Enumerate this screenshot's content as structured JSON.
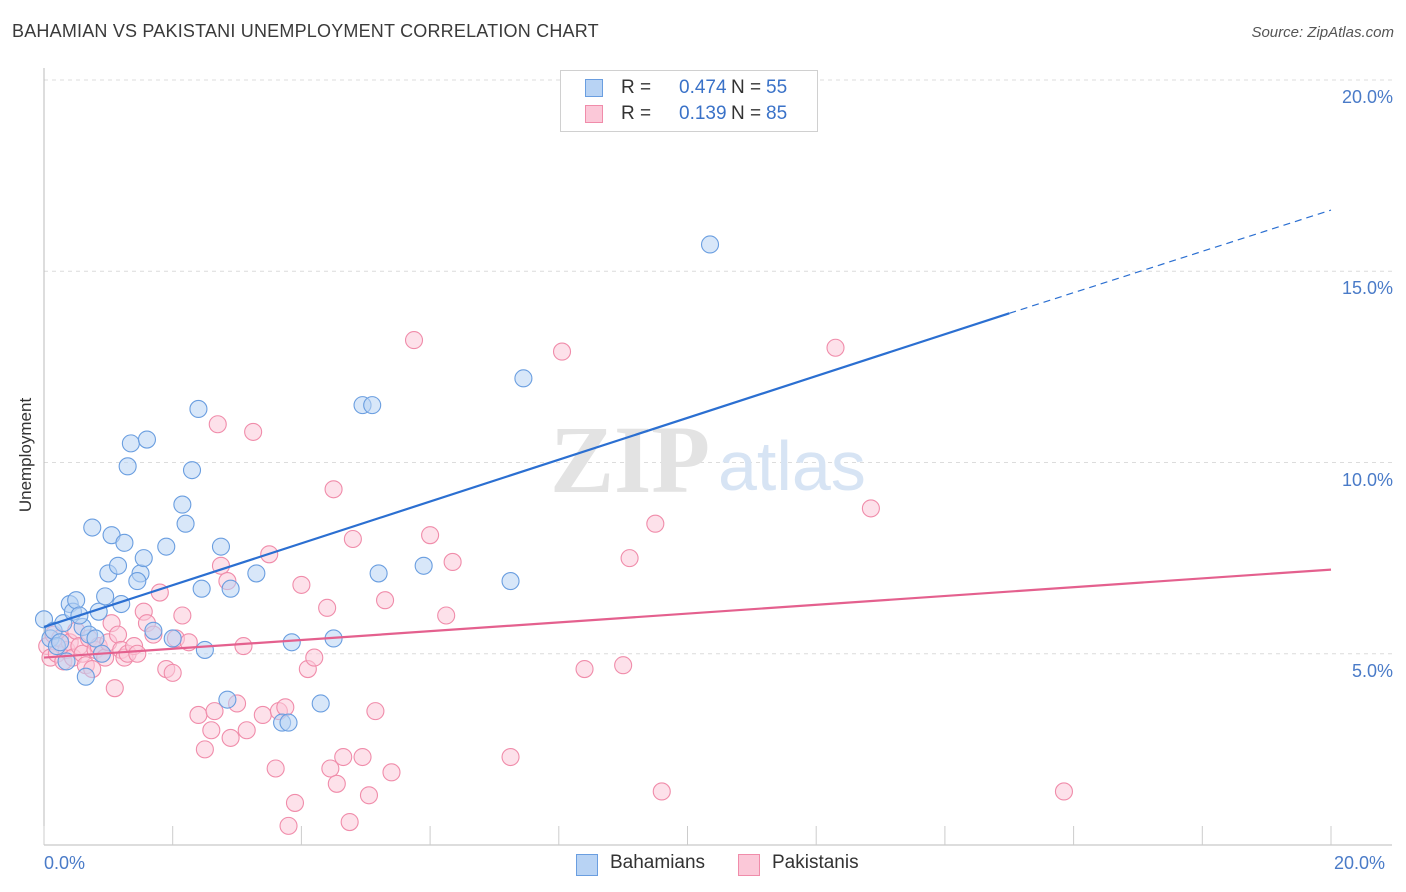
{
  "title": "BAHAMIAN VS PAKISTANI UNEMPLOYMENT CORRELATION CHART",
  "source": "Source: ZipAtlas.com",
  "watermark": {
    "zip": "ZIP",
    "atlas": "atlas"
  },
  "legend": {
    "rows": [
      {
        "r_label": "R =",
        "r_value": "0.474",
        "n_label": "N =",
        "n_value": "55",
        "fill": "#b8d3f4",
        "stroke": "#6a9ee0"
      },
      {
        "r_label": "R =",
        "r_value": "0.139",
        "n_label": "N =",
        "n_value": "85",
        "fill": "#fbc8d8",
        "stroke": "#f08caa"
      }
    ]
  },
  "chart_data": {
    "type": "scatter",
    "title": "BAHAMIAN VS PAKISTANI UNEMPLOYMENT CORRELATION CHART",
    "xlabel": "",
    "ylabel": "Unemployment",
    "xlim": [
      0,
      20
    ],
    "ylim": [
      0,
      20
    ],
    "x_tick_labels": [
      "0.0%",
      "20.0%"
    ],
    "y_tick_labels": [
      "20.0%",
      "15.0%",
      "10.0%",
      "5.0%"
    ],
    "y_tick_values": [
      20,
      15,
      10,
      5
    ],
    "grid": "horizontal dashed",
    "legend_position": "top-center",
    "series": [
      {
        "name": "Bahamians",
        "color": "#6a9ee0",
        "fill": "#b8d3f4",
        "trend": {
          "x0": 0,
          "y0": 5.7,
          "x1": 15,
          "y1": 13.9,
          "dashed_to_x": 20,
          "dashed_to_y": 16.6,
          "color": "#2b6fd1"
        },
        "points": [
          [
            0.0,
            5.9
          ],
          [
            0.1,
            5.4
          ],
          [
            0.15,
            5.6
          ],
          [
            0.2,
            5.2
          ],
          [
            0.25,
            5.3
          ],
          [
            0.3,
            5.8
          ],
          [
            0.35,
            4.8
          ],
          [
            0.4,
            6.3
          ],
          [
            0.45,
            6.1
          ],
          [
            0.5,
            6.4
          ],
          [
            0.6,
            5.7
          ],
          [
            0.65,
            4.4
          ],
          [
            0.7,
            5.5
          ],
          [
            0.75,
            8.3
          ],
          [
            0.8,
            5.4
          ],
          [
            0.85,
            6.1
          ],
          [
            0.9,
            5.0
          ],
          [
            0.95,
            6.5
          ],
          [
            1.0,
            7.1
          ],
          [
            1.05,
            8.1
          ],
          [
            1.15,
            7.3
          ],
          [
            1.2,
            6.3
          ],
          [
            1.25,
            7.9
          ],
          [
            1.3,
            9.9
          ],
          [
            1.35,
            10.5
          ],
          [
            1.5,
            7.1
          ],
          [
            1.55,
            7.5
          ],
          [
            1.6,
            10.6
          ],
          [
            1.7,
            5.6
          ],
          [
            1.9,
            7.8
          ],
          [
            2.0,
            5.4
          ],
          [
            2.15,
            8.9
          ],
          [
            2.2,
            8.4
          ],
          [
            2.3,
            9.8
          ],
          [
            2.4,
            11.4
          ],
          [
            2.45,
            6.7
          ],
          [
            2.5,
            5.1
          ],
          [
            2.75,
            7.8
          ],
          [
            2.9,
            6.7
          ],
          [
            2.85,
            3.8
          ],
          [
            3.3,
            7.1
          ],
          [
            3.7,
            3.2
          ],
          [
            3.8,
            3.2
          ],
          [
            3.85,
            5.3
          ],
          [
            4.3,
            3.7
          ],
          [
            4.5,
            5.4
          ],
          [
            4.95,
            11.5
          ],
          [
            5.1,
            11.5
          ],
          [
            5.2,
            7.1
          ],
          [
            5.9,
            7.3
          ],
          [
            7.25,
            6.9
          ],
          [
            7.45,
            12.2
          ],
          [
            10.35,
            15.7
          ],
          [
            0.55,
            6.0
          ],
          [
            1.45,
            6.9
          ]
        ]
      },
      {
        "name": "Pakistanis",
        "color": "#f08caa",
        "fill": "#fbc8d8",
        "trend": {
          "x0": 0,
          "y0": 4.9,
          "x1": 20,
          "y1": 7.2,
          "color": "#e4608e"
        },
        "points": [
          [
            0.05,
            5.2
          ],
          [
            0.1,
            4.9
          ],
          [
            0.15,
            5.5
          ],
          [
            0.2,
            5.0
          ],
          [
            0.25,
            5.4
          ],
          [
            0.3,
            4.8
          ],
          [
            0.35,
            5.1
          ],
          [
            0.4,
            5.3
          ],
          [
            0.45,
            4.9
          ],
          [
            0.5,
            5.6
          ],
          [
            0.55,
            5.2
          ],
          [
            0.6,
            5.0
          ],
          [
            0.65,
            4.7
          ],
          [
            0.7,
            5.4
          ],
          [
            0.8,
            5.1
          ],
          [
            0.85,
            5.2
          ],
          [
            0.9,
            5.0
          ],
          [
            0.95,
            4.9
          ],
          [
            1.0,
            5.3
          ],
          [
            1.05,
            5.8
          ],
          [
            1.1,
            4.1
          ],
          [
            1.15,
            5.5
          ],
          [
            1.2,
            5.1
          ],
          [
            1.25,
            4.9
          ],
          [
            1.3,
            5.0
          ],
          [
            1.4,
            5.2
          ],
          [
            1.45,
            5.0
          ],
          [
            1.55,
            6.1
          ],
          [
            1.6,
            5.8
          ],
          [
            1.7,
            5.5
          ],
          [
            1.8,
            6.6
          ],
          [
            1.9,
            4.6
          ],
          [
            2.0,
            4.5
          ],
          [
            2.05,
            5.4
          ],
          [
            2.15,
            6.0
          ],
          [
            2.25,
            5.3
          ],
          [
            2.4,
            3.4
          ],
          [
            2.5,
            2.5
          ],
          [
            2.6,
            3.0
          ],
          [
            2.65,
            3.5
          ],
          [
            2.7,
            11.0
          ],
          [
            2.75,
            7.3
          ],
          [
            2.85,
            6.9
          ],
          [
            2.9,
            2.8
          ],
          [
            3.0,
            3.7
          ],
          [
            3.1,
            5.2
          ],
          [
            3.15,
            3.0
          ],
          [
            3.25,
            10.8
          ],
          [
            3.4,
            3.4
          ],
          [
            3.5,
            7.6
          ],
          [
            3.6,
            2.0
          ],
          [
            3.65,
            3.5
          ],
          [
            3.75,
            3.6
          ],
          [
            3.8,
            0.5
          ],
          [
            3.9,
            1.1
          ],
          [
            4.0,
            6.8
          ],
          [
            4.1,
            4.6
          ],
          [
            4.2,
            4.9
          ],
          [
            4.4,
            6.2
          ],
          [
            4.45,
            2.0
          ],
          [
            4.5,
            9.3
          ],
          [
            4.55,
            1.6
          ],
          [
            4.65,
            2.3
          ],
          [
            4.75,
            0.6
          ],
          [
            4.8,
            8.0
          ],
          [
            4.95,
            2.3
          ],
          [
            5.05,
            1.3
          ],
          [
            5.15,
            3.5
          ],
          [
            5.3,
            6.4
          ],
          [
            5.4,
            1.9
          ],
          [
            5.75,
            13.2
          ],
          [
            6.0,
            8.1
          ],
          [
            6.25,
            6.0
          ],
          [
            6.35,
            7.4
          ],
          [
            7.25,
            2.3
          ],
          [
            8.05,
            12.9
          ],
          [
            8.4,
            4.6
          ],
          [
            9.0,
            4.7
          ],
          [
            9.1,
            7.5
          ],
          [
            9.5,
            8.4
          ],
          [
            9.6,
            1.4
          ],
          [
            12.3,
            13.0
          ],
          [
            12.85,
            8.8
          ],
          [
            15.85,
            1.4
          ],
          [
            0.75,
            4.6
          ]
        ]
      }
    ]
  },
  "bottom_legend": [
    {
      "label": "Bahamians",
      "fill": "#b8d3f4",
      "stroke": "#6a9ee0"
    },
    {
      "label": "Pakistanis",
      "fill": "#fbc8d8",
      "stroke": "#f08caa"
    }
  ]
}
